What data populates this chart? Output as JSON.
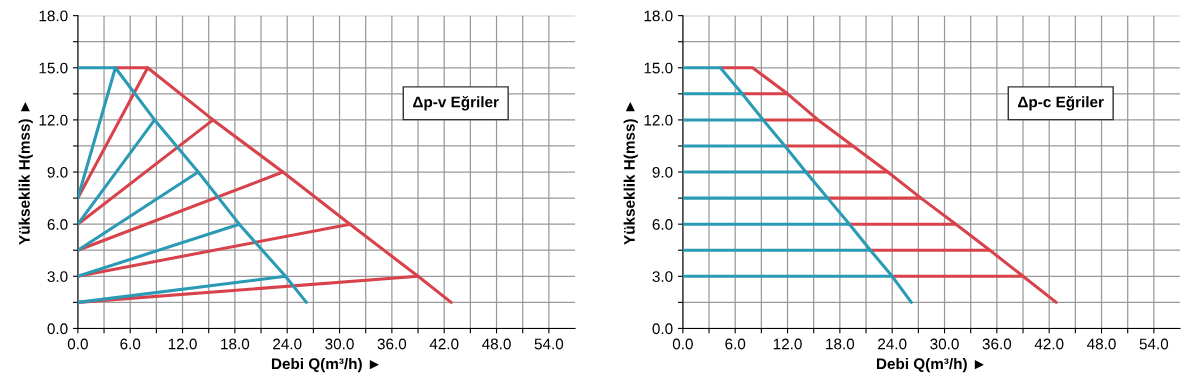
{
  "chart_data": [
    {
      "type": "line",
      "xlabel": "Debi Q(m³/h) ►",
      "ylabel": "Yükseklik H(mss) ►",
      "annotations": [
        "Δp-v Eğriler"
      ],
      "xlim": [
        0,
        57
      ],
      "ylim": [
        0,
        18
      ],
      "xticks": [
        {
          "value": 0,
          "label": "0.0"
        },
        {
          "value": 3,
          "label": null
        },
        {
          "value": 6,
          "label": "6.0"
        },
        {
          "value": 9,
          "label": null
        },
        {
          "value": 12,
          "label": "12.0"
        },
        {
          "value": 15,
          "label": null
        },
        {
          "value": 18,
          "label": "18.0"
        },
        {
          "value": 21,
          "label": null
        },
        {
          "value": 24,
          "label": "24.0"
        },
        {
          "value": 27,
          "label": null
        },
        {
          "value": 30,
          "label": "30.0"
        },
        {
          "value": 33,
          "label": null
        },
        {
          "value": 36,
          "label": "36.0"
        },
        {
          "value": 39,
          "label": null
        },
        {
          "value": 42,
          "label": "42.0"
        },
        {
          "value": 45,
          "label": null
        },
        {
          "value": 48,
          "label": "48.0"
        },
        {
          "value": 51,
          "label": null
        },
        {
          "value": 54,
          "label": "54.0"
        }
      ],
      "yticks": [
        {
          "value": 0,
          "label": "0.0"
        },
        {
          "value": 1.5,
          "label": null
        },
        {
          "value": 3,
          "label": "3.0"
        },
        {
          "value": 4.5,
          "label": null
        },
        {
          "value": 6,
          "label": "6.0"
        },
        {
          "value": 7.5,
          "label": null
        },
        {
          "value": 9,
          "label": "9.0"
        },
        {
          "value": 10.5,
          "label": null
        },
        {
          "value": 12,
          "label": "12.0"
        },
        {
          "value": 13.5,
          "label": null
        },
        {
          "value": 15,
          "label": "15.0"
        },
        {
          "value": 16.5,
          "label": null
        },
        {
          "value": 18,
          "label": "18.0"
        }
      ],
      "grid": true,
      "marker": "none",
      "line_style": "solid",
      "series": [
        {
          "color": "#d8434b",
          "x": [
            4.3,
            8,
            15.5,
            23.5,
            31.2,
            39,
            42.8
          ],
          "values": [
            15,
            15,
            12,
            9,
            6,
            3,
            1.5
          ]
        },
        {
          "color": "#d8434b",
          "x": [
            0,
            8
          ],
          "values": [
            7.5,
            15
          ]
        },
        {
          "color": "#d8434b",
          "x": [
            0,
            15.5
          ],
          "values": [
            6,
            12
          ]
        },
        {
          "color": "#d8434b",
          "x": [
            0,
            23.5
          ],
          "values": [
            4.5,
            9
          ]
        },
        {
          "color": "#d8434b",
          "x": [
            0,
            31.2
          ],
          "values": [
            3,
            6
          ]
        },
        {
          "color": "#d8434b",
          "x": [
            0,
            39
          ],
          "values": [
            1.5,
            3
          ]
        },
        {
          "color": "#2a9ab5",
          "x": [
            0,
            4.3,
            8.8,
            13.8,
            18.5,
            23.8,
            26.2
          ],
          "values": [
            15,
            15,
            12,
            9,
            6,
            3,
            1.5
          ]
        },
        {
          "color": "#2a9ab5",
          "x": [
            0,
            4.3
          ],
          "values": [
            7.5,
            15
          ]
        },
        {
          "color": "#2a9ab5",
          "x": [
            0,
            8.8
          ],
          "values": [
            6,
            12
          ]
        },
        {
          "color": "#2a9ab5",
          "x": [
            0,
            13.8
          ],
          "values": [
            4.5,
            9
          ]
        },
        {
          "color": "#2a9ab5",
          "x": [
            0,
            18.5
          ],
          "values": [
            3,
            6
          ]
        },
        {
          "color": "#2a9ab5",
          "x": [
            0,
            23.8
          ],
          "values": [
            1.5,
            3
          ]
        }
      ]
    },
    {
      "type": "line",
      "xlabel": "Debi Q(m³/h) ►",
      "ylabel": "Yükseklik H(mss) ►",
      "annotations": [
        "Δp-c Eğriler"
      ],
      "xlim": [
        0,
        57
      ],
      "ylim": [
        0,
        18
      ],
      "xticks": [
        {
          "value": 0,
          "label": "0.0"
        },
        {
          "value": 3,
          "label": null
        },
        {
          "value": 6,
          "label": "6.0"
        },
        {
          "value": 9,
          "label": null
        },
        {
          "value": 12,
          "label": "12.0"
        },
        {
          "value": 15,
          "label": null
        },
        {
          "value": 18,
          "label": "18.0"
        },
        {
          "value": 21,
          "label": null
        },
        {
          "value": 24,
          "label": "24.0"
        },
        {
          "value": 27,
          "label": null
        },
        {
          "value": 30,
          "label": "30.0"
        },
        {
          "value": 33,
          "label": null
        },
        {
          "value": 36,
          "label": "36.0"
        },
        {
          "value": 39,
          "label": null
        },
        {
          "value": 42,
          "label": "42.0"
        },
        {
          "value": 45,
          "label": null
        },
        {
          "value": 48,
          "label": "48.0"
        },
        {
          "value": 51,
          "label": null
        },
        {
          "value": 54,
          "label": "54.0"
        }
      ],
      "yticks": [
        {
          "value": 0,
          "label": "0.0"
        },
        {
          "value": 1.5,
          "label": null
        },
        {
          "value": 3,
          "label": "3.0"
        },
        {
          "value": 4.5,
          "label": null
        },
        {
          "value": 6,
          "label": "6.0"
        },
        {
          "value": 7.5,
          "label": null
        },
        {
          "value": 9,
          "label": "9.0"
        },
        {
          "value": 10.5,
          "label": null
        },
        {
          "value": 12,
          "label": "12.0"
        },
        {
          "value": 13.5,
          "label": null
        },
        {
          "value": 15,
          "label": "15.0"
        },
        {
          "value": 16.5,
          "label": null
        },
        {
          "value": 18,
          "label": "18.0"
        }
      ],
      "grid": true,
      "marker": "none",
      "line_style": "solid",
      "series": [
        {
          "color": "#d8434b",
          "x": [
            4.3,
            8,
            12,
            15.5,
            19.5,
            23.5,
            27.3,
            31.3,
            35.2,
            39,
            42.8
          ],
          "values": [
            15,
            15,
            13.5,
            12,
            10.5,
            9,
            7.5,
            6,
            4.5,
            3,
            1.5
          ]
        },
        {
          "color": "#d8434b",
          "x": [
            6.8,
            12
          ],
          "values": [
            13.5,
            13.5
          ]
        },
        {
          "color": "#d8434b",
          "x": [
            9.2,
            15.5
          ],
          "values": [
            12,
            12
          ]
        },
        {
          "color": "#d8434b",
          "x": [
            11.7,
            19.5
          ],
          "values": [
            10.5,
            10.5
          ]
        },
        {
          "color": "#d8434b",
          "x": [
            14.1,
            23.5
          ],
          "values": [
            9,
            9
          ]
        },
        {
          "color": "#d8434b",
          "x": [
            16.6,
            27.3
          ],
          "values": [
            7.5,
            7.5
          ]
        },
        {
          "color": "#d8434b",
          "x": [
            19.1,
            31.3
          ],
          "values": [
            6,
            6
          ]
        },
        {
          "color": "#d8434b",
          "x": [
            21.5,
            35.2
          ],
          "values": [
            4.5,
            4.5
          ]
        },
        {
          "color": "#d8434b",
          "x": [
            24,
            39
          ],
          "values": [
            3,
            3
          ]
        },
        {
          "color": "#2a9ab5",
          "x": [
            0,
            4.3,
            6.8,
            9.2,
            11.7,
            14.1,
            16.6,
            19.1,
            21.5,
            24,
            26.2
          ],
          "values": [
            15,
            15,
            13.5,
            12,
            10.5,
            9,
            7.5,
            6,
            4.5,
            3,
            1.5
          ]
        },
        {
          "color": "#2a9ab5",
          "x": [
            0,
            6.8
          ],
          "values": [
            13.5,
            13.5
          ]
        },
        {
          "color": "#2a9ab5",
          "x": [
            0,
            9.2
          ],
          "values": [
            12,
            12
          ]
        },
        {
          "color": "#2a9ab5",
          "x": [
            0,
            11.7
          ],
          "values": [
            10.5,
            10.5
          ]
        },
        {
          "color": "#2a9ab5",
          "x": [
            0,
            14.1
          ],
          "values": [
            9,
            9
          ]
        },
        {
          "color": "#2a9ab5",
          "x": [
            0,
            16.6
          ],
          "values": [
            7.5,
            7.5
          ]
        },
        {
          "color": "#2a9ab5",
          "x": [
            0,
            19.1
          ],
          "values": [
            6,
            6
          ]
        },
        {
          "color": "#2a9ab5",
          "x": [
            0,
            21.5
          ],
          "values": [
            4.5,
            4.5
          ]
        },
        {
          "color": "#2a9ab5",
          "x": [
            0,
            24
          ],
          "values": [
            3,
            3
          ]
        }
      ]
    }
  ]
}
